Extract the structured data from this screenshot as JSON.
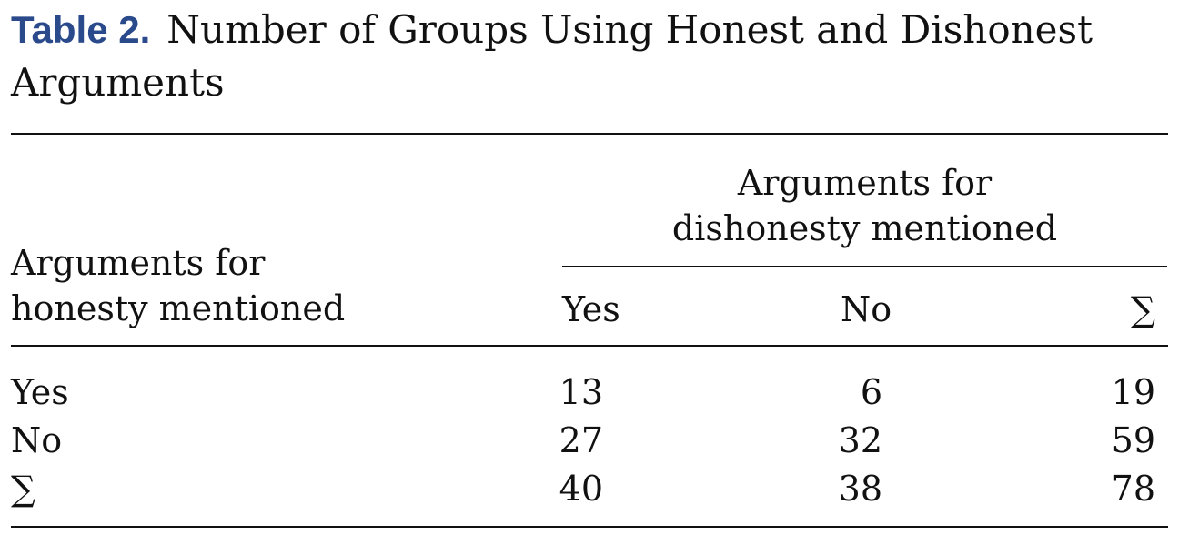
{
  "caption": {
    "label": "Table 2.",
    "line1": "Number of Groups Using Honest and Dishonest",
    "line2": "Arguments"
  },
  "table": {
    "column_group_header": [
      "Arguments for",
      "dishonesty mentioned"
    ],
    "row_header": [
      "Arguments for",
      "honesty mentioned"
    ],
    "columns": [
      "Yes",
      "No",
      "∑"
    ],
    "rows": [
      {
        "label": "Yes",
        "values": [
          "13",
          "6",
          "19"
        ]
      },
      {
        "label": "No",
        "values": [
          "27",
          "32",
          "59"
        ]
      },
      {
        "label": "∑",
        "values": [
          "40",
          "38",
          "78"
        ]
      }
    ]
  }
}
